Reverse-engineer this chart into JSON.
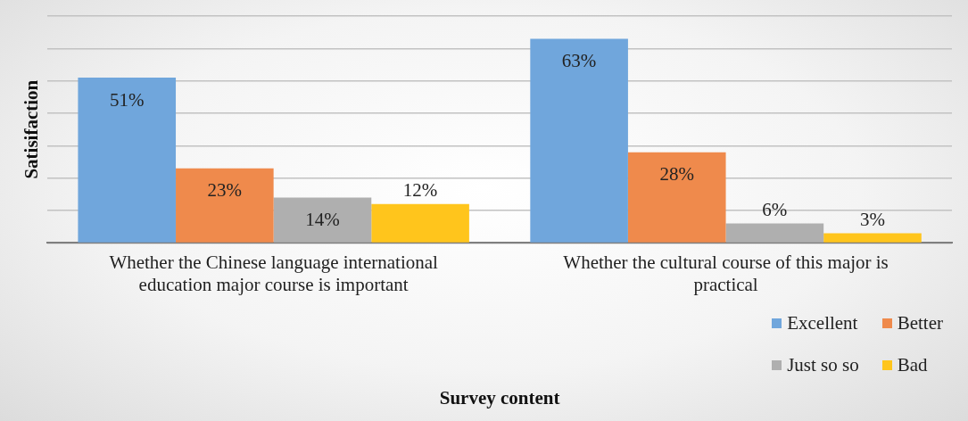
{
  "chart_data": {
    "type": "bar",
    "xlabel": "Survey content",
    "ylabel": "Satisifaction",
    "categories": [
      "Whether the Chinese language international education major course is important",
      "Whether the cultural course of this major is practical"
    ],
    "series": [
      {
        "name": "Excellent",
        "color": "#70a6dc",
        "values": [
          51,
          63
        ],
        "value_labels": [
          "51%",
          "63%"
        ]
      },
      {
        "name": "Better",
        "color": "#ef8a4c",
        "values": [
          23,
          28
        ],
        "value_labels": [
          "23%",
          "28%"
        ]
      },
      {
        "name": "Just so so",
        "color": "#afafaf",
        "values": [
          14,
          6
        ],
        "value_labels": [
          "14%",
          "6%"
        ]
      },
      {
        "name": "Bad",
        "color": "#ffc51c",
        "values": [
          12,
          3
        ],
        "value_labels": [
          "12%",
          "3%"
        ]
      }
    ],
    "ylim": [
      0,
      70
    ],
    "tick_labels": "x",
    "grid": "y",
    "legend": "bottom right"
  }
}
